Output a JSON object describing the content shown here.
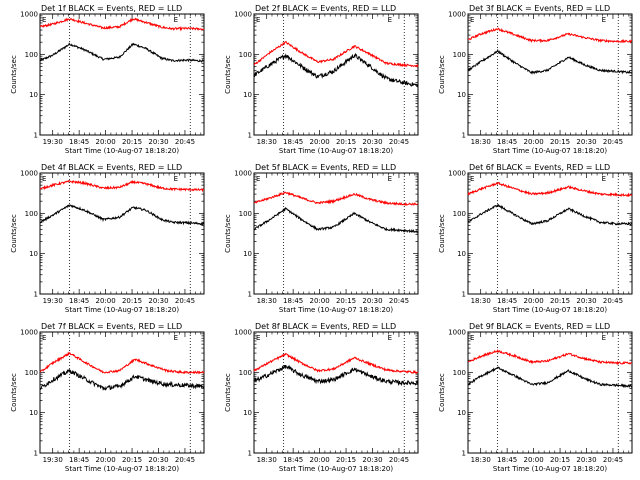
{
  "figure": {
    "x_axis_label": "Start Time (10-Aug-07 18:18:20)",
    "y_axis_label": "Counts/sec",
    "y_tick_labels": [
      "1",
      "10",
      "100",
      "1000"
    ],
    "marker_labels": [
      "E",
      "E"
    ],
    "colors": {
      "events": "#000000",
      "lld": "#ff0000",
      "axes": "#000000"
    }
  },
  "chart_data": [
    {
      "type": "line",
      "title": "Det 1f BLACK = Events, RED = LLD",
      "x_ticks": [
        "19:30",
        "18:45",
        "20:00",
        "20:15",
        "20:30",
        "20:45"
      ],
      "y_scale": "log",
      "ylim": [
        1,
        1000
      ],
      "time_range_min": [
        0,
        155
      ],
      "vlines_min": [
        28,
        142
      ],
      "series": [
        {
          "role": "events",
          "x": [
            0,
            12,
            28,
            42,
            60,
            75,
            88,
            100,
            115,
            125,
            140,
            155
          ],
          "values": [
            70,
            95,
            180,
            130,
            75,
            85,
            180,
            140,
            80,
            70,
            72,
            68
          ]
        },
        {
          "role": "lld",
          "x": [
            0,
            12,
            28,
            42,
            60,
            75,
            88,
            100,
            115,
            125,
            140,
            155
          ],
          "values": [
            480,
            560,
            760,
            600,
            450,
            480,
            760,
            620,
            470,
            430,
            440,
            420
          ]
        }
      ]
    },
    {
      "type": "line",
      "title": "Det 2f BLACK = Events, RED = LLD",
      "x_ticks": [
        "18:30",
        "18:45",
        "20:00",
        "20:15",
        "20:30",
        "20:45"
      ],
      "y_scale": "log",
      "ylim": [
        1,
        1000
      ],
      "time_range_min": [
        0,
        155
      ],
      "vlines_min": [
        28,
        142
      ],
      "series": [
        {
          "role": "events",
          "x": [
            0,
            15,
            30,
            45,
            60,
            75,
            95,
            110,
            125,
            140,
            155
          ],
          "values": [
            30,
            55,
            95,
            50,
            28,
            38,
            95,
            50,
            25,
            20,
            17
          ]
        },
        {
          "role": "lld",
          "x": [
            0,
            15,
            30,
            45,
            60,
            75,
            95,
            110,
            125,
            140,
            155
          ],
          "values": [
            55,
            110,
            200,
            110,
            65,
            75,
            160,
            100,
            60,
            55,
            52
          ]
        }
      ]
    },
    {
      "type": "line",
      "title": "Det 3f BLACK = Events, RED = LLD",
      "x_ticks": [
        "18:30",
        "18:45",
        "20:00",
        "20:15",
        "20:30",
        "20:45"
      ],
      "y_scale": "log",
      "ylim": [
        1,
        1000
      ],
      "time_range_min": [
        0,
        155
      ],
      "vlines_min": [
        28,
        142
      ],
      "series": [
        {
          "role": "events",
          "x": [
            0,
            12,
            28,
            45,
            60,
            75,
            95,
            110,
            125,
            140,
            155
          ],
          "values": [
            40,
            65,
            120,
            60,
            35,
            40,
            85,
            55,
            40,
            38,
            35
          ]
        },
        {
          "role": "lld",
          "x": [
            0,
            12,
            28,
            45,
            60,
            75,
            95,
            110,
            125,
            140,
            155
          ],
          "values": [
            230,
            320,
            430,
            300,
            220,
            220,
            320,
            260,
            220,
            210,
            210
          ]
        }
      ]
    },
    {
      "type": "line",
      "title": "Det 4f BLACK = Events, RED = LLD",
      "x_ticks": [
        "19:30",
        "18:45",
        "20:00",
        "20:15",
        "20:30",
        "20:45"
      ],
      "y_scale": "log",
      "ylim": [
        1,
        1000
      ],
      "time_range_min": [
        0,
        155
      ],
      "vlines_min": [
        28,
        142
      ],
      "series": [
        {
          "role": "events",
          "x": [
            0,
            12,
            28,
            42,
            60,
            75,
            88,
            100,
            115,
            125,
            140,
            155
          ],
          "values": [
            60,
            90,
            160,
            120,
            70,
            80,
            140,
            120,
            70,
            60,
            58,
            55
          ]
        },
        {
          "role": "lld",
          "x": [
            0,
            12,
            28,
            42,
            60,
            75,
            88,
            100,
            115,
            125,
            140,
            155
          ],
          "values": [
            400,
            500,
            620,
            560,
            420,
            440,
            600,
            540,
            420,
            400,
            390,
            380
          ]
        }
      ]
    },
    {
      "type": "line",
      "title": "Det 5f BLACK = Events, RED = LLD",
      "x_ticks": [
        "18:30",
        "18:45",
        "20:00",
        "20:15",
        "20:30",
        "20:45"
      ],
      "y_scale": "log",
      "ylim": [
        1,
        1000
      ],
      "time_range_min": [
        0,
        155
      ],
      "vlines_min": [
        28,
        142
      ],
      "series": [
        {
          "role": "events",
          "x": [
            0,
            15,
            30,
            45,
            60,
            75,
            95,
            110,
            125,
            140,
            155
          ],
          "values": [
            40,
            70,
            130,
            70,
            40,
            45,
            100,
            60,
            40,
            38,
            35
          ]
        },
        {
          "role": "lld",
          "x": [
            0,
            15,
            30,
            45,
            60,
            75,
            95,
            110,
            125,
            140,
            155
          ],
          "values": [
            180,
            240,
            330,
            240,
            180,
            200,
            300,
            220,
            180,
            170,
            170
          ]
        }
      ]
    },
    {
      "type": "line",
      "title": "Det 6f BLACK = Events, RED = LLD",
      "x_ticks": [
        "18:30",
        "18:45",
        "20:00",
        "20:15",
        "20:30",
        "20:45"
      ],
      "y_scale": "log",
      "ylim": [
        1,
        1000
      ],
      "time_range_min": [
        0,
        155
      ],
      "vlines_min": [
        28,
        142
      ],
      "series": [
        {
          "role": "events",
          "x": [
            0,
            12,
            28,
            45,
            60,
            75,
            95,
            110,
            125,
            140,
            155
          ],
          "values": [
            60,
            95,
            160,
            90,
            55,
            65,
            130,
            85,
            60,
            55,
            55
          ]
        },
        {
          "role": "lld",
          "x": [
            0,
            12,
            28,
            45,
            60,
            75,
            95,
            110,
            125,
            140,
            155
          ],
          "values": [
            300,
            400,
            560,
            400,
            300,
            320,
            450,
            360,
            300,
            290,
            280
          ]
        }
      ]
    },
    {
      "type": "line",
      "title": "Det 7f BLACK = Events, RED = LLD",
      "x_ticks": [
        "19:30",
        "18:45",
        "20:00",
        "20:15",
        "20:30",
        "20:45"
      ],
      "y_scale": "log",
      "ylim": [
        1,
        1000
      ],
      "time_range_min": [
        0,
        155
      ],
      "vlines_min": [
        28,
        142
      ],
      "series": [
        {
          "role": "events",
          "x": [
            0,
            12,
            28,
            42,
            60,
            75,
            90,
            105,
            120,
            135,
            155
          ],
          "values": [
            40,
            65,
            110,
            70,
            40,
            45,
            80,
            60,
            50,
            48,
            45
          ]
        },
        {
          "role": "lld",
          "x": [
            0,
            12,
            28,
            42,
            60,
            75,
            90,
            105,
            120,
            135,
            155
          ],
          "values": [
            100,
            170,
            300,
            180,
            100,
            110,
            210,
            150,
            110,
            100,
            100
          ]
        }
      ]
    },
    {
      "type": "line",
      "title": "Det 8f BLACK = Events, RED = LLD",
      "x_ticks": [
        "18:30",
        "18:45",
        "20:00",
        "20:15",
        "20:30",
        "20:45"
      ],
      "y_scale": "log",
      "ylim": [
        1,
        1000
      ],
      "time_range_min": [
        0,
        155
      ],
      "vlines_min": [
        28,
        142
      ],
      "series": [
        {
          "role": "events",
          "x": [
            0,
            15,
            30,
            45,
            60,
            75,
            95,
            110,
            125,
            140,
            155
          ],
          "values": [
            60,
            90,
            140,
            85,
            60,
            65,
            120,
            80,
            60,
            55,
            55
          ]
        },
        {
          "role": "lld",
          "x": [
            0,
            15,
            30,
            45,
            60,
            75,
            95,
            110,
            125,
            140,
            155
          ],
          "values": [
            110,
            180,
            280,
            170,
            110,
            120,
            230,
            160,
            115,
            105,
            100
          ]
        }
      ]
    },
    {
      "type": "line",
      "title": "Det 9f BLACK = Events, RED = LLD",
      "x_ticks": [
        "18:30",
        "18:45",
        "20:00",
        "20:15",
        "20:30",
        "20:45"
      ],
      "y_scale": "log",
      "ylim": [
        1,
        1000
      ],
      "time_range_min": [
        0,
        155
      ],
      "vlines_min": [
        28,
        142
      ],
      "series": [
        {
          "role": "events",
          "x": [
            0,
            12,
            28,
            45,
            60,
            75,
            95,
            110,
            125,
            140,
            155
          ],
          "values": [
            50,
            80,
            130,
            80,
            50,
            55,
            110,
            70,
            50,
            48,
            45
          ]
        },
        {
          "role": "lld",
          "x": [
            0,
            12,
            28,
            45,
            60,
            75,
            95,
            110,
            125,
            140,
            155
          ],
          "values": [
            180,
            250,
            340,
            250,
            180,
            190,
            290,
            220,
            180,
            170,
            170
          ]
        }
      ]
    }
  ]
}
